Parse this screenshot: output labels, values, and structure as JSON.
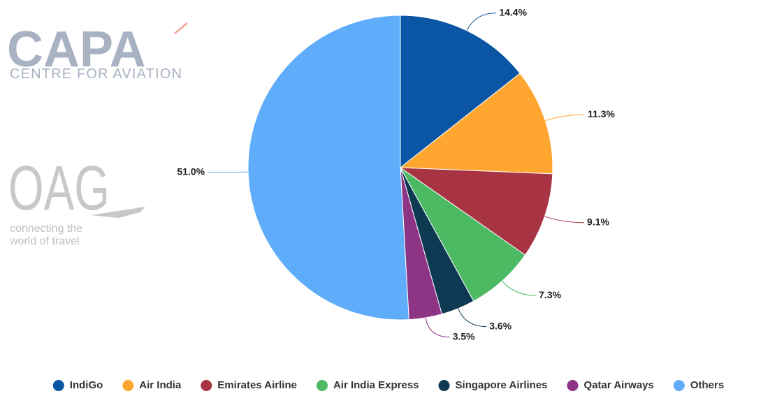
{
  "logos": {
    "capa": {
      "name": "CAPA",
      "subtitle": "CENTRE FOR AVIATION"
    },
    "oag": {
      "name": "OAG",
      "tagline_1": "connecting the",
      "tagline_2": "world of travel"
    }
  },
  "chart_data": {
    "type": "pie",
    "categories": [
      "IndiGo",
      "Air India",
      "Emirates Airline",
      "Air India Express",
      "Singapore Airlines",
      "Qatar Airways",
      "Others"
    ],
    "values": [
      14.4,
      11.3,
      9.1,
      7.3,
      3.6,
      3.5,
      51.0
    ],
    "value_labels": [
      "14.4%",
      "11.3%",
      "9.1%",
      "7.3%",
      "3.6%",
      "3.5%",
      "51.0%"
    ],
    "colors": [
      "#0b55a5",
      "#ffa630",
      "#a83343",
      "#4cb963",
      "#0d3a52",
      "#8e3485",
      "#5fadfa"
    ],
    "legend": "bottom"
  }
}
